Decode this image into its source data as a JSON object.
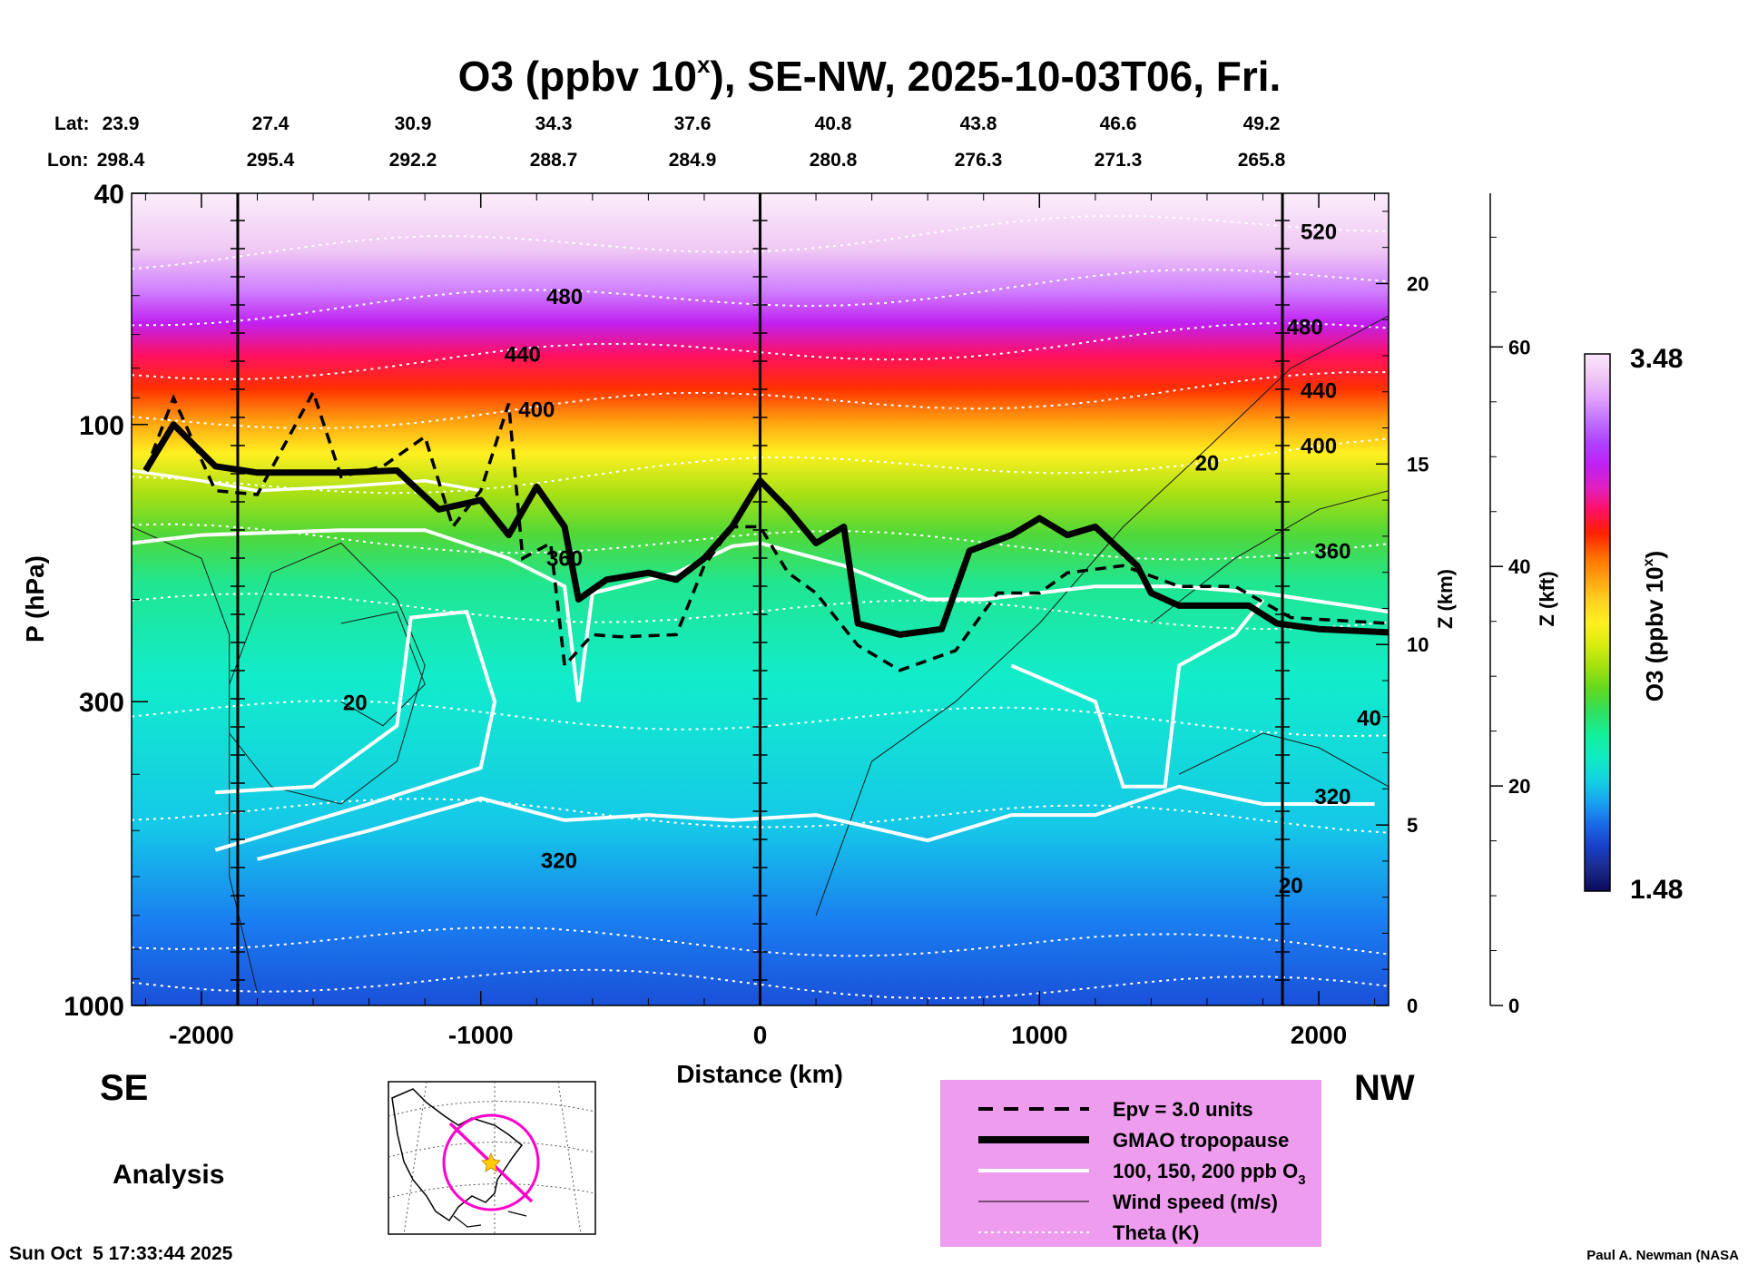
{
  "chart_data": {
    "type": "heatmap",
    "title_prefix": "O3 (ppbv 10",
    "title_exp": "x",
    "title_suffix": "), SE-NW, 2025-10-03T06, Fri.",
    "xlabel": "Distance (km)",
    "ylabel": "P (hPa)",
    "z_km_label": "Z (km)",
    "z_kft_label": "Z (kft)",
    "xlim": [
      -2250,
      2250
    ],
    "ylim": [
      1000,
      40
    ],
    "x_ticks": [
      -2000,
      -1000,
      0,
      1000,
      2000
    ],
    "y_ticks": [
      40,
      100,
      300,
      1000
    ],
    "z_km_ticks": [
      0,
      5,
      10,
      15,
      20
    ],
    "z_kft_ticks": [
      0,
      20,
      40,
      60
    ],
    "vertical_markers_km": [
      -1870,
      0,
      1870
    ],
    "lat_label": "Lat:",
    "lon_label": "Lon:",
    "lat_values": [
      "23.9",
      "27.4",
      "30.9",
      "34.3",
      "37.6",
      "40.8",
      "43.8",
      "46.6",
      "49.2"
    ],
    "lon_values": [
      "298.4",
      "295.4",
      "292.2",
      "288.7",
      "284.9",
      "280.8",
      "276.3",
      "271.3",
      "265.8"
    ],
    "colorbar": {
      "label_prefix": "O3 (ppbv 10",
      "label_exp": "x",
      "label_suffix": ")",
      "min": "1.48",
      "max": "3.48",
      "colors": [
        "#0a0a5a",
        "#1a2a8a",
        "#1840c8",
        "#1a6ae8",
        "#19a4f0",
        "#14d2e0",
        "#10ecc0",
        "#12f09a",
        "#30e060",
        "#60d820",
        "#a0e010",
        "#d8ec10",
        "#fff020",
        "#ffd020",
        "#ffa010",
        "#ff6a00",
        "#ff2000",
        "#ff1060",
        "#e020c0",
        "#c020f0",
        "#b040ff",
        "#c070ff",
        "#e0a0ff",
        "#f0c8f4",
        "#fbe6fb"
      ]
    },
    "theta_labels": [
      "320",
      "360",
      "400",
      "440",
      "480",
      "520"
    ],
    "wind_labels": [
      "20",
      "40"
    ],
    "tropopause_pressure_hpa": [
      [
        -2200,
        120
      ],
      [
        -2100,
        100
      ],
      [
        -1950,
        118
      ],
      [
        -1800,
        121
      ],
      [
        -1500,
        121
      ],
      [
        -1300,
        120
      ],
      [
        -1150,
        140
      ],
      [
        -1000,
        135
      ],
      [
        -900,
        155
      ],
      [
        -800,
        128
      ],
      [
        -700,
        150
      ],
      [
        -650,
        200
      ],
      [
        -550,
        185
      ],
      [
        -400,
        180
      ],
      [
        -300,
        185
      ],
      [
        -200,
        170
      ],
      [
        -100,
        150
      ],
      [
        0,
        125
      ],
      [
        100,
        140
      ],
      [
        200,
        160
      ],
      [
        300,
        150
      ],
      [
        350,
        220
      ],
      [
        500,
        230
      ],
      [
        650,
        225
      ],
      [
        750,
        165
      ],
      [
        900,
        155
      ],
      [
        1000,
        145
      ],
      [
        1100,
        155
      ],
      [
        1200,
        150
      ],
      [
        1350,
        175
      ],
      [
        1400,
        195
      ],
      [
        1500,
        205
      ],
      [
        1750,
        205
      ],
      [
        1850,
        220
      ],
      [
        2000,
        225
      ],
      [
        2250,
        228
      ]
    ],
    "epv_pressure_hpa": [
      [
        -2200,
        120
      ],
      [
        -2100,
        90
      ],
      [
        -1950,
        130
      ],
      [
        -1800,
        132
      ],
      [
        -1600,
        88
      ],
      [
        -1500,
        123
      ],
      [
        -1350,
        118
      ],
      [
        -1200,
        105
      ],
      [
        -1100,
        150
      ],
      [
        -1000,
        130
      ],
      [
        -900,
        92
      ],
      [
        -850,
        170
      ],
      [
        -750,
        160
      ],
      [
        -700,
        260
      ],
      [
        -600,
        230
      ],
      [
        -500,
        232
      ],
      [
        -300,
        230
      ],
      [
        -200,
        175
      ],
      [
        -100,
        150
      ],
      [
        0,
        150
      ],
      [
        100,
        180
      ],
      [
        200,
        195
      ],
      [
        350,
        240
      ],
      [
        500,
        265
      ],
      [
        700,
        245
      ],
      [
        850,
        195
      ],
      [
        1000,
        195
      ],
      [
        1100,
        180
      ],
      [
        1300,
        175
      ],
      [
        1500,
        190
      ],
      [
        1700,
        190
      ],
      [
        1900,
        215
      ],
      [
        2250,
        220
      ]
    ],
    "o3_100ppb_contour_pressure_hpa": [
      [
        -2250,
        160
      ],
      [
        -2000,
        155
      ],
      [
        -1500,
        152
      ],
      [
        -1200,
        152
      ],
      [
        -900,
        170
      ],
      [
        -700,
        190
      ],
      [
        -650,
        300
      ],
      [
        -600,
        195
      ],
      [
        -300,
        180
      ],
      [
        -100,
        162
      ],
      [
        0,
        160
      ],
      [
        300,
        175
      ],
      [
        600,
        200
      ],
      [
        800,
        200
      ],
      [
        1200,
        190
      ],
      [
        1500,
        190
      ],
      [
        1800,
        195
      ],
      [
        2250,
        210
      ]
    ]
  },
  "footer": {
    "se_label": "SE",
    "nw_label": "NW",
    "analysis_label": "Analysis",
    "timestamp": "Sun Oct  5 17:33:44 2025",
    "credit": "Paul A. Newman (NASA"
  },
  "legend": {
    "items": [
      {
        "label": "Epv = 3.0 units",
        "style": "dashed"
      },
      {
        "label": "GMAO tropopause",
        "style": "thick"
      },
      {
        "label": "100, 150, 200 ppb O",
        "sub": "3",
        "style": "white"
      },
      {
        "label": "Wind speed (m/s)",
        "style": "thin"
      },
      {
        "label": "Theta (K)",
        "style": "dotted"
      }
    ],
    "background": "#ee9cee"
  },
  "colors": {
    "tropopause": "#000000",
    "o3_contour": "#ffffff",
    "route": "#ff00cc",
    "marker": "#ffcc00"
  }
}
